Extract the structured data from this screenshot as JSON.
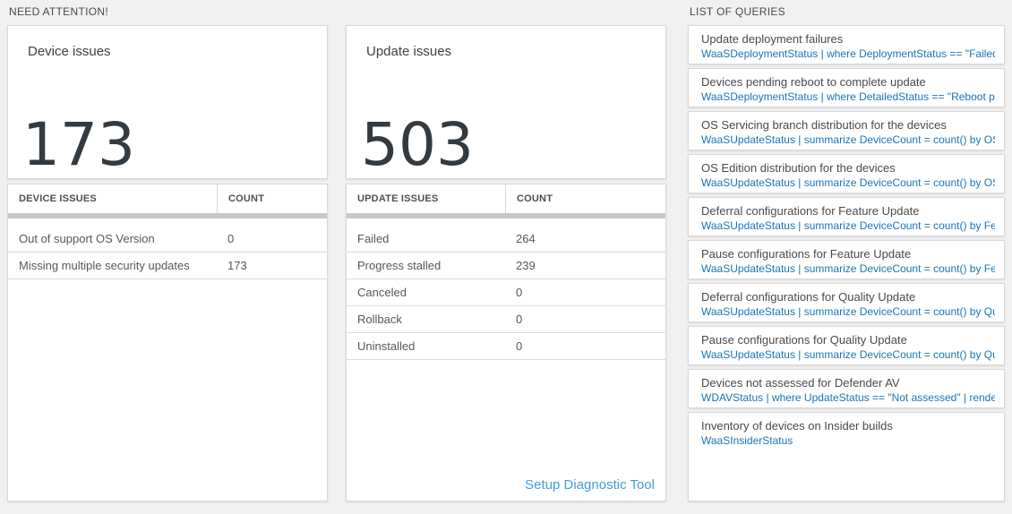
{
  "colors": {
    "page_background": "#f1f1f1",
    "card_background": "#ffffff",
    "card_border": "#d9d9d9",
    "metric_text": "#333a40",
    "query_text_blue": "#1c74b8",
    "action_link_blue": "#3f9fd8",
    "scrollbar_gray": "#c8c8c8"
  },
  "need_attention": {
    "header": "NEED ATTENTION!",
    "device_card": {
      "title": "Device issues",
      "value": "173"
    },
    "device_table": {
      "columns": [
        "DEVICE ISSUES",
        "COUNT"
      ],
      "rows": [
        {
          "label": "Out of support OS Version",
          "count": "0"
        },
        {
          "label": "Missing multiple security updates",
          "count": "173"
        }
      ]
    },
    "update_card": {
      "title": "Update issues",
      "value": "503"
    },
    "update_table": {
      "columns": [
        "UPDATE ISSUES",
        "COUNT"
      ],
      "rows": [
        {
          "label": "Failed",
          "count": "264"
        },
        {
          "label": "Progress stalled",
          "count": "239"
        },
        {
          "label": "Canceled",
          "count": "0"
        },
        {
          "label": "Rollback",
          "count": "0"
        },
        {
          "label": "Uninstalled",
          "count": "0"
        }
      ]
    },
    "setup_link": "Setup Diagnostic Tool"
  },
  "queries": {
    "header": "LIST OF QUERIES",
    "items": [
      {
        "title": "Update deployment failures",
        "query": "WaaSDeploymentStatus | where DeploymentStatus == \"Failed\" |..."
      },
      {
        "title": "Devices pending reboot to complete update",
        "query": "WaaSDeploymentStatus | where DetailedStatus == \"Reboot pend..."
      },
      {
        "title": "OS Servicing branch distribution for the devices",
        "query": "WaaSUpdateStatus | summarize DeviceCount = count() by OSSer..."
      },
      {
        "title": "OS Edition distribution for the devices",
        "query": "WaaSUpdateStatus | summarize DeviceCount = count() by OSEdit..."
      },
      {
        "title": "Deferral configurations for Feature Update",
        "query": "WaaSUpdateStatus | summarize DeviceCount = count() by Featur..."
      },
      {
        "title": "Pause configurations for Feature Update",
        "query": "WaaSUpdateStatus | summarize DeviceCount = count() by Featur..."
      },
      {
        "title": "Deferral configurations for Quality Update",
        "query": "WaaSUpdateStatus | summarize DeviceCount = count() by Qualit..."
      },
      {
        "title": "Pause configurations for Quality Update",
        "query": "WaaSUpdateStatus | summarize DeviceCount = count() by Qualit..."
      },
      {
        "title": "Devices not assessed for Defender AV",
        "query": "WDAVStatus | where UpdateStatus == \"Not assessed\" | render ta..."
      },
      {
        "title": "Inventory of devices on Insider builds",
        "query": "WaaSInsiderStatus"
      }
    ]
  }
}
